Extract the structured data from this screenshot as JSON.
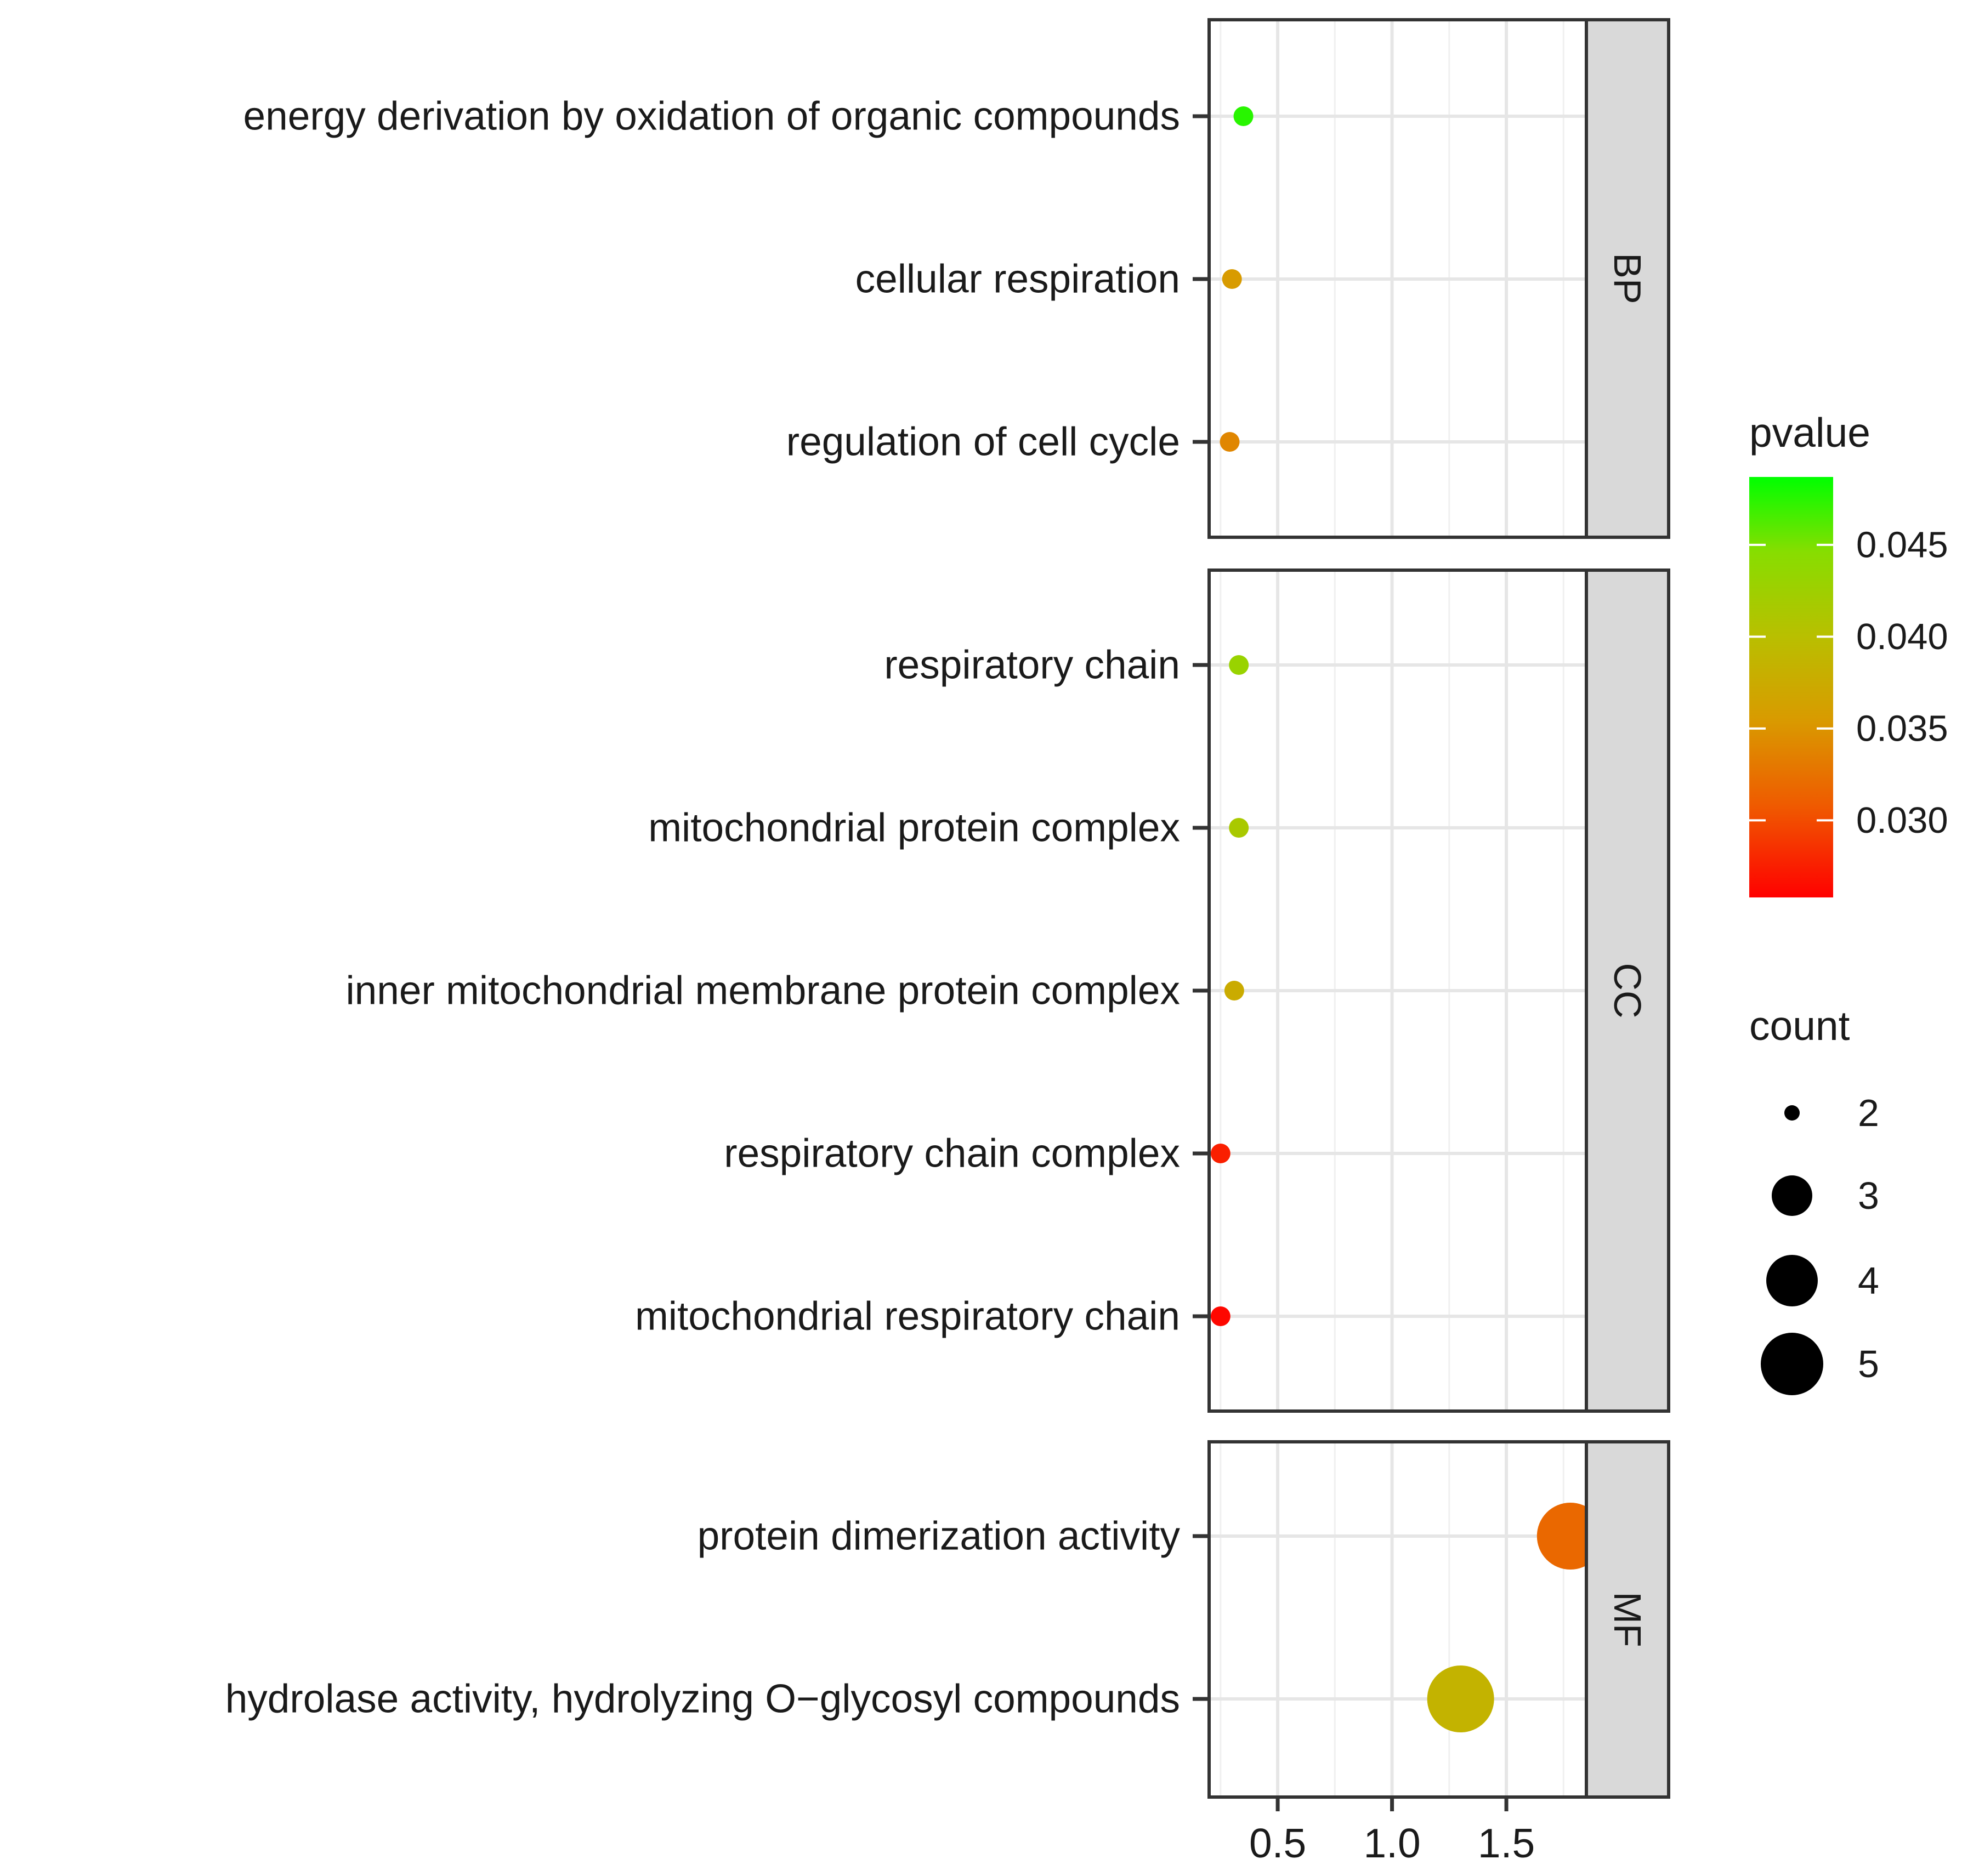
{
  "chart_data": {
    "type": "scatter",
    "xlim": [
      0.2,
      1.85
    ],
    "x_ticks": [
      0.5,
      1.0,
      1.5
    ],
    "x_tick_labels": [
      "0.5",
      "1.0",
      "1.5"
    ],
    "grid": true,
    "legend_position": "right",
    "facets": [
      {
        "name": "BP",
        "points": [
          {
            "term": "energy derivation by oxidation of organic compounds",
            "x": 0.35,
            "count": 2,
            "pvalue": 0.0475
          },
          {
            "term": "cellular respiration",
            "x": 0.3,
            "count": 2,
            "pvalue": 0.0355
          },
          {
            "term": "regulation of cell cycle",
            "x": 0.29,
            "count": 2,
            "pvalue": 0.034
          }
        ]
      },
      {
        "name": "CC",
        "points": [
          {
            "term": "respiratory chain",
            "x": 0.33,
            "count": 2,
            "pvalue": 0.043
          },
          {
            "term": "mitochondrial protein complex",
            "x": 0.33,
            "count": 2,
            "pvalue": 0.0415
          },
          {
            "term": "inner mitochondrial membrane protein complex",
            "x": 0.31,
            "count": 2,
            "pvalue": 0.0375
          },
          {
            "term": "respiratory chain complex",
            "x": 0.25,
            "count": 2,
            "pvalue": 0.0275
          },
          {
            "term": "mitochondrial respiratory chain",
            "x": 0.25,
            "count": 2,
            "pvalue": 0.0262
          }
        ]
      },
      {
        "name": "MF",
        "points": [
          {
            "term": "protein dimerization activity",
            "x": 1.78,
            "count": 5,
            "pvalue": 0.0318
          },
          {
            "term": "hydrolase activity, hydrolyzing O−glycosyl compounds",
            "x": 1.3,
            "count": 5,
            "pvalue": 0.0385
          }
        ]
      }
    ],
    "color_legend": {
      "title": "pvalue",
      "range": [
        0.0258,
        0.0487
      ],
      "ticks": [
        0.045,
        0.04,
        0.035,
        0.03
      ],
      "tick_labels": [
        "0.045",
        "0.040",
        "0.035",
        "0.030"
      ],
      "low_color": "#ff0000",
      "high_color": "#00ff00"
    },
    "size_legend": {
      "title": "count",
      "values": [
        2,
        3,
        4,
        5
      ],
      "labels": [
        "2",
        "3",
        "4",
        "5"
      ]
    }
  }
}
